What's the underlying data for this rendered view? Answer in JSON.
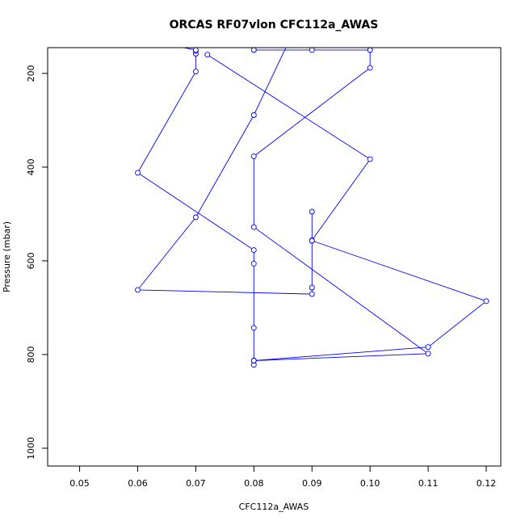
{
  "chart_data": {
    "type": "line",
    "title": "ORCAS RF07vlon CFC112a_AWAS",
    "xlabel": "CFC112a_AWAS",
    "ylabel": "Pressure (mbar)",
    "xlim": [
      0.0445,
      0.1225
    ],
    "ylim": [
      1038,
      145
    ],
    "y_inverted": true,
    "x_ticks": [
      "0.05",
      "0.06",
      "0.07",
      "0.08",
      "0.09",
      "0.10",
      "0.11",
      "0.12"
    ],
    "y_ticks": [
      "200",
      "400",
      "600",
      "800",
      "1000"
    ],
    "grid": false,
    "legend": "none",
    "colors": {
      "series": "#0000ff",
      "frame": "#000000"
    },
    "series": [
      {
        "points": [
          {
            "x": 0.08,
            "y": 150
          },
          {
            "x": 0.08,
            "y": 150
          },
          {
            "x": 0.08,
            "y": 150
          },
          {
            "x": 0.09,
            "y": 150
          },
          {
            "x": 0.1,
            "y": 150
          },
          {
            "x": 0.1,
            "y": 150
          },
          {
            "x": 0.1,
            "y": 150
          },
          {
            "x": 0.1,
            "y": 188
          },
          {
            "x": 0.08,
            "y": 377
          },
          {
            "x": 0.08,
            "y": 528
          },
          {
            "x": 0.11,
            "y": 798
          },
          {
            "x": 0.08,
            "y": 813
          },
          {
            "x": 0.08,
            "y": 822
          },
          {
            "x": 0.08,
            "y": 813
          },
          {
            "x": 0.08,
            "y": 743
          },
          {
            "x": 0.08,
            "y": 606
          },
          {
            "x": 0.08,
            "y": 577
          },
          {
            "x": 0.06,
            "y": 412
          },
          {
            "x": 0.07,
            "y": 196
          },
          {
            "x": 0.07,
            "y": 158
          },
          {
            "x": 0.07,
            "y": 152
          },
          {
            "x": 0.07,
            "y": 150
          },
          {
            "x": 0.068,
            "y": 145
          }
        ]
      },
      {
        "points": [
          {
            "x": 0.072,
            "y": 160
          },
          {
            "x": 0.1,
            "y": 383
          },
          {
            "x": 0.09,
            "y": 556
          },
          {
            "x": 0.09,
            "y": 495
          },
          {
            "x": 0.09,
            "y": 557
          },
          {
            "x": 0.09,
            "y": 657
          },
          {
            "x": 0.09,
            "y": 671
          },
          {
            "x": 0.06,
            "y": 662
          },
          {
            "x": 0.07,
            "y": 507
          },
          {
            "x": 0.08,
            "y": 289
          },
          {
            "x": 0.0855,
            "y": 145
          }
        ]
      },
      {
        "points": [
          {
            "x": 0.09,
            "y": 557
          },
          {
            "x": 0.12,
            "y": 686
          },
          {
            "x": 0.11,
            "y": 784
          },
          {
            "x": 0.08,
            "y": 813
          }
        ]
      }
    ]
  }
}
